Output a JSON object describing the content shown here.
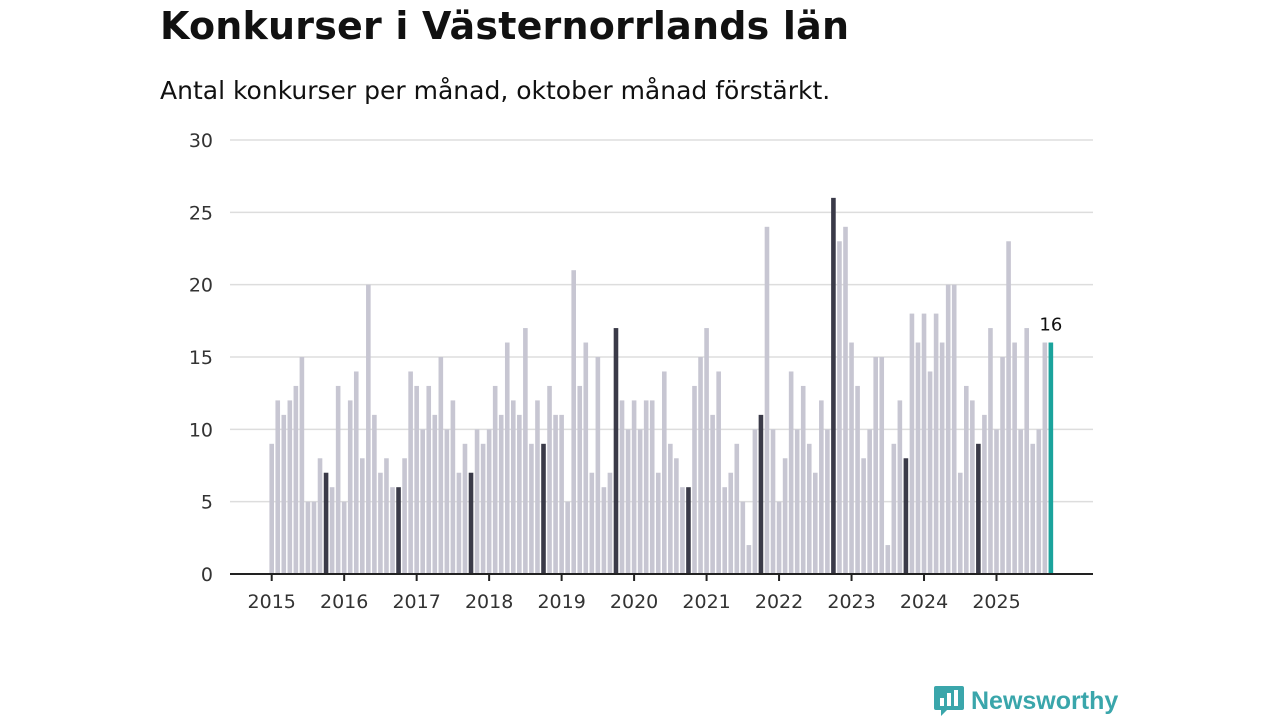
{
  "header": {
    "title": "Konkurser i Västernorrlands län",
    "subtitle": "Antal konkurser per månad, oktober månad förstärkt."
  },
  "brand": {
    "name": "Newsworthy"
  },
  "colors": {
    "regular": "#c7c6d2",
    "highlight": "#3a3a48",
    "latest": "#1aa39c",
    "grid": "#dddddd",
    "axis": "#222222"
  },
  "chart_data": {
    "type": "bar",
    "title": "Konkurser i Västernorrlands län",
    "subtitle": "Antal konkurser per månad, oktober månad förstärkt.",
    "xlabel": "",
    "ylabel": "",
    "ylim": [
      0,
      30
    ],
    "yticks": [
      0,
      5,
      10,
      15,
      20,
      25,
      30
    ],
    "grid": true,
    "start": {
      "year": 2015,
      "month": 1
    },
    "years": [
      "2015",
      "2016",
      "2017",
      "2018",
      "2019",
      "2020",
      "2021",
      "2022",
      "2023",
      "2024",
      "2025"
    ],
    "highlight_month": 10,
    "last_label": "16",
    "values": [
      9,
      12,
      11,
      12,
      13,
      15,
      5,
      5,
      8,
      7,
      6,
      13,
      5,
      12,
      14,
      8,
      20,
      11,
      7,
      8,
      6,
      6,
      8,
      14,
      13,
      10,
      13,
      11,
      15,
      10,
      12,
      7,
      9,
      7,
      10,
      9,
      10,
      13,
      11,
      16,
      12,
      11,
      17,
      9,
      12,
      9,
      13,
      11,
      11,
      5,
      21,
      13,
      16,
      7,
      15,
      6,
      7,
      17,
      12,
      10,
      12,
      10,
      12,
      12,
      7,
      14,
      9,
      8,
      6,
      6,
      13,
      15,
      17,
      11,
      14,
      6,
      7,
      9,
      5,
      2,
      10,
      11,
      24,
      10,
      5,
      8,
      14,
      10,
      13,
      9,
      7,
      12,
      10,
      26,
      23,
      24,
      16,
      13,
      8,
      10,
      15,
      15,
      2,
      9,
      12,
      8,
      18,
      16,
      18,
      14,
      18,
      16,
      20,
      20,
      7,
      13,
      12,
      9,
      11,
      17,
      10,
      15,
      23,
      16,
      10,
      17,
      9,
      10,
      16,
      16
    ]
  }
}
